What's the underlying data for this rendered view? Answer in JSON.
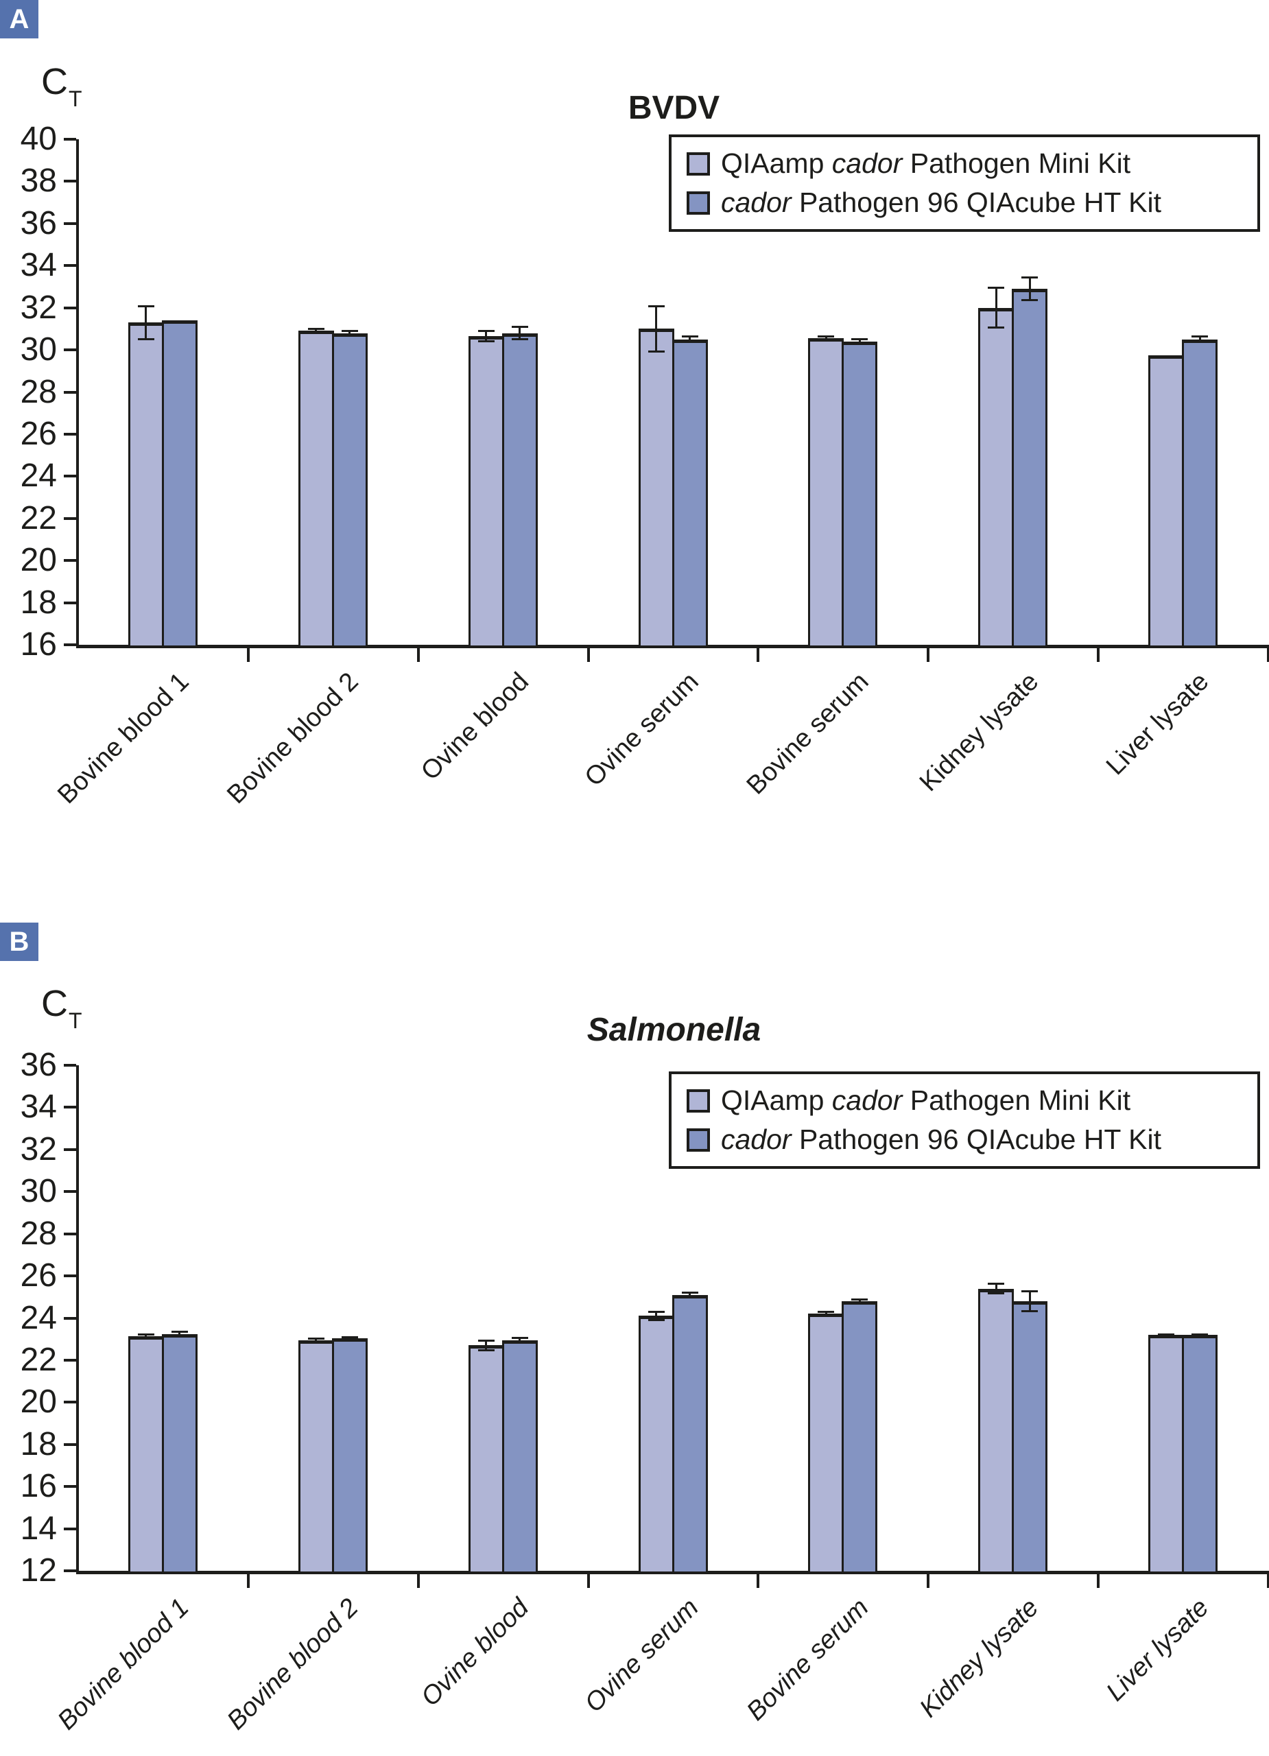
{
  "colors": {
    "series": [
      "#b0b5d6",
      "#8494c2"
    ],
    "panel_badge_bg": "#5572ad",
    "panel_badge_text": "#ffffff",
    "axis": "#1d1d1b",
    "background": "#ffffff"
  },
  "legend": {
    "entries": [
      {
        "segments": [
          {
            "t": "QIAamp ",
            "i": false
          },
          {
            "t": "cador",
            "i": true
          },
          {
            "t": " Pathogen Mini Kit",
            "i": false
          }
        ]
      },
      {
        "segments": [
          {
            "t": "cador",
            "i": true
          },
          {
            "t": " Pathogen 96 QIAcube HT Kit",
            "i": false
          }
        ]
      }
    ]
  },
  "chart_data": [
    {
      "panel": "A",
      "type": "bar",
      "title": "BVDV",
      "title_style": "bold",
      "ylabel_main": "C",
      "ylabel_sub": "T",
      "ylim": [
        16,
        40
      ],
      "ytick_step": 2,
      "grid": false,
      "legend_position": "top-right",
      "categories": [
        "Bovine blood 1",
        "Bovine blood 2",
        "Ovine blood",
        "Ovine serum",
        "Bovine serum",
        "Kidney lysate",
        "Liver lysate"
      ],
      "category_style": "normal",
      "series": [
        {
          "name": "QIAamp cador Pathogen Mini Kit",
          "values": [
            31.3,
            30.9,
            30.65,
            31.0,
            30.55,
            32.0,
            29.75
          ],
          "errors": [
            0.8,
            0.1,
            0.25,
            1.1,
            0.12,
            0.95,
            0
          ]
        },
        {
          "name": "cador Pathogen 96 QIAcube HT Kit",
          "values": [
            31.4,
            30.8,
            30.8,
            30.5,
            30.4,
            32.9,
            30.5
          ],
          "errors": [
            0,
            0.1,
            0.3,
            0.15,
            0.12,
            0.55,
            0.15
          ]
        }
      ]
    },
    {
      "panel": "B",
      "type": "bar",
      "title": "Salmonella",
      "title_style": "bold-italic",
      "ylabel_main": "C",
      "ylabel_sub": "T",
      "ylim": [
        12,
        36
      ],
      "ytick_step": 2,
      "grid": false,
      "legend_position": "top-right",
      "categories": [
        "Bovine blood 1",
        "Bovine blood 2",
        "Ovine blood",
        "Ovine serum",
        "Bovine serum",
        "Kidney lysate",
        "Liver lysate"
      ],
      "category_style": "italic",
      "series": [
        {
          "name": "QIAamp cador Pathogen Mini Kit",
          "values": [
            23.15,
            22.95,
            22.7,
            24.1,
            24.2,
            25.4,
            23.2
          ],
          "errors": [
            0.1,
            0.08,
            0.25,
            0.2,
            0.12,
            0.25,
            0.05
          ]
        },
        {
          "name": "cador Pathogen 96 QIAcube HT Kit",
          "values": [
            23.25,
            23.05,
            22.95,
            25.1,
            24.8,
            24.8,
            23.2
          ],
          "errors": [
            0.12,
            0.05,
            0.12,
            0.12,
            0.1,
            0.5,
            0.05
          ]
        }
      ]
    }
  ]
}
